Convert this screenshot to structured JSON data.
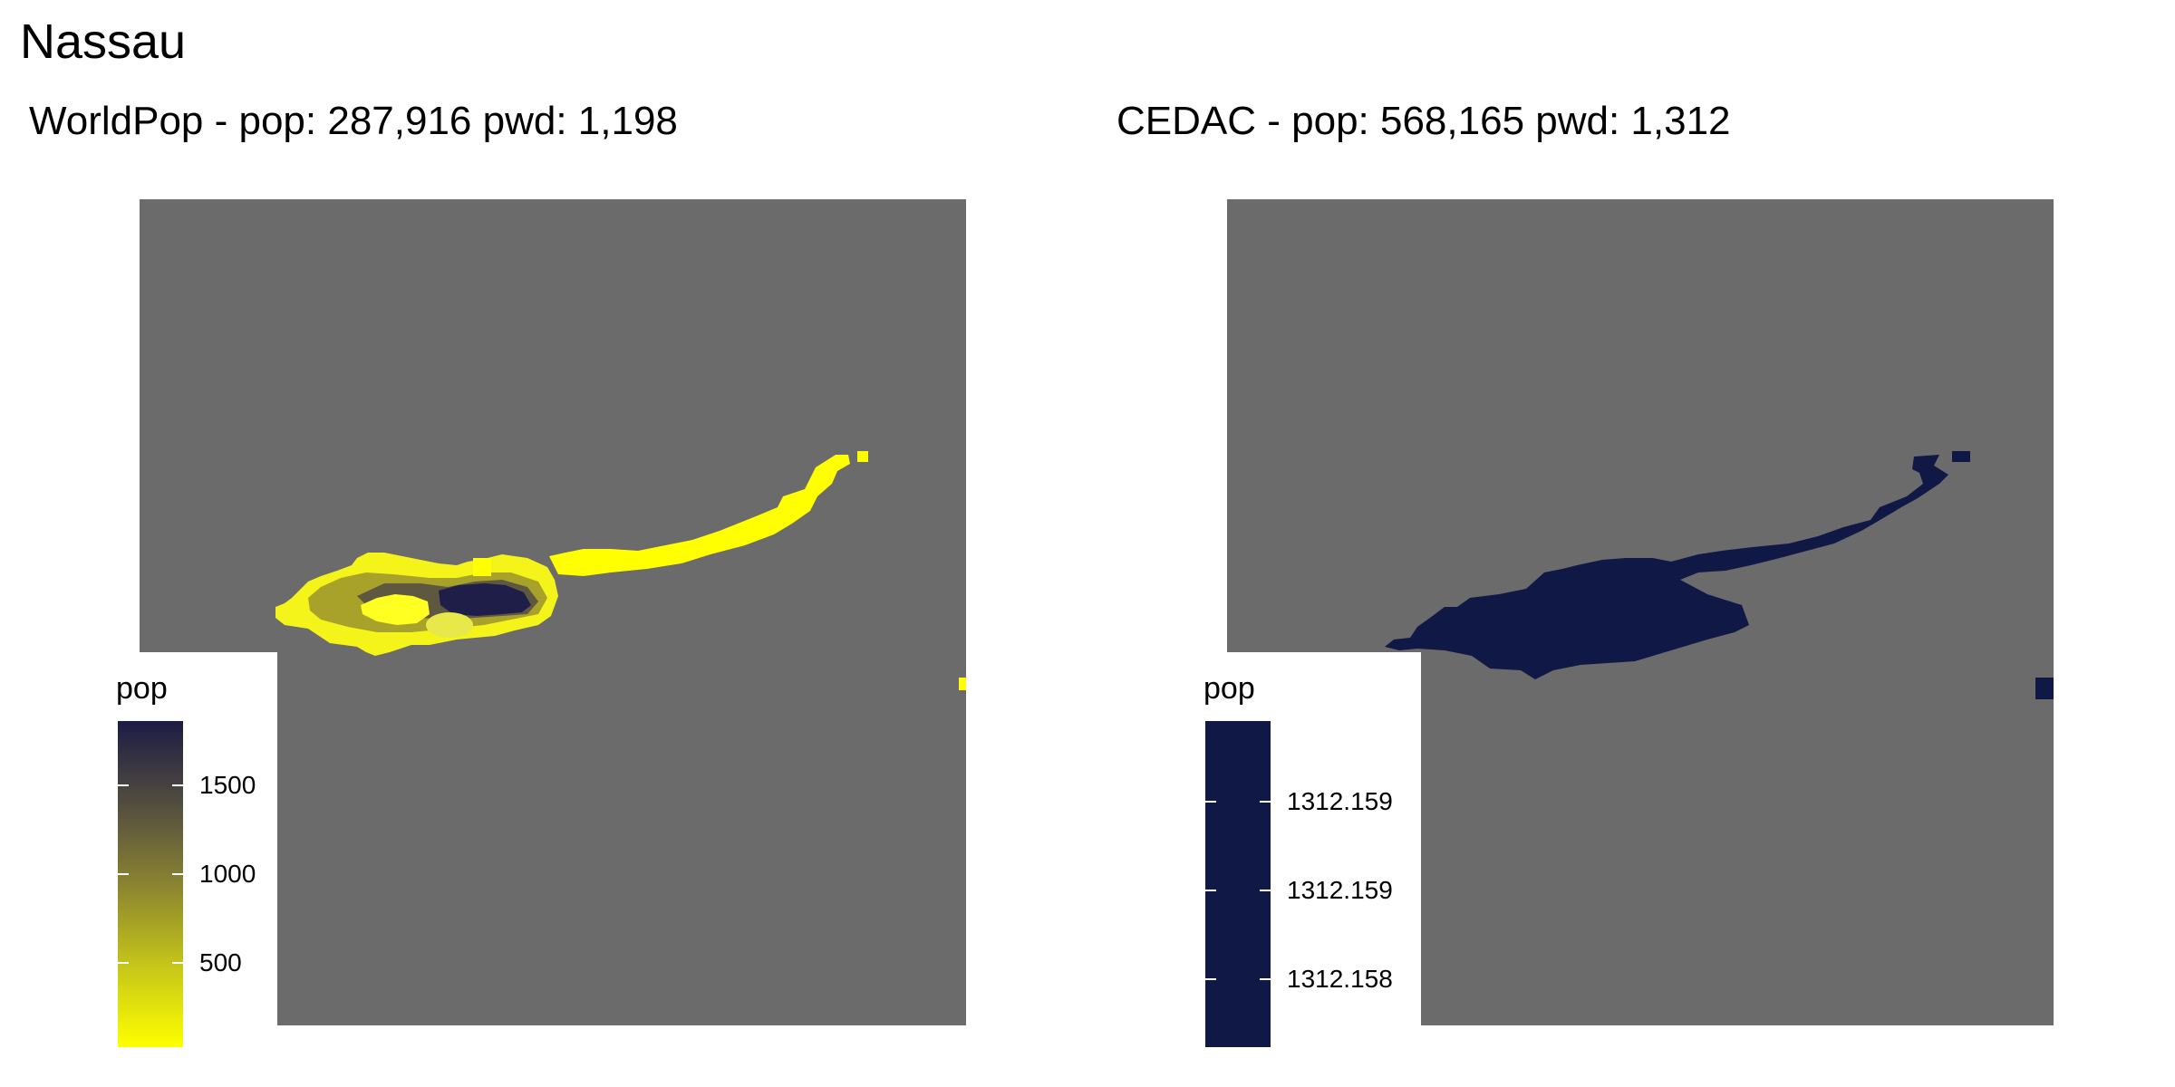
{
  "title": "Nassau",
  "panels": [
    {
      "id": "worldpop",
      "title": "WorldPop - pop: 287,916 pwd: 1,198",
      "legend": {
        "title": "pop",
        "labels": [
          "1500",
          "1000",
          "500"
        ],
        "color_low": "#FFFF00",
        "color_high": "#1C1C45"
      }
    },
    {
      "id": "cedac",
      "title": "CEDAC - pop: 568,165 pwd: 1,312",
      "legend": {
        "title": "pop",
        "labels": [
          "1312.159",
          "1312.159",
          "1312.158"
        ],
        "color": "#101846"
      }
    }
  ],
  "colors": {
    "land_background": "#6B6B6B",
    "worldpop_fill": "#FFFF00",
    "cedac_fill": "#101846"
  }
}
